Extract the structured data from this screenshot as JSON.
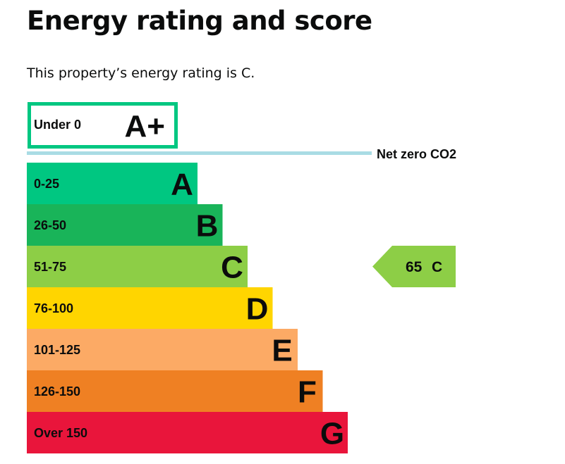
{
  "heading": "Energy rating and score",
  "rating_sentence": "This property’s energy rating is C.",
  "colors": {
    "text": "#0b0c0c",
    "net_zero_line": "#a9dce4"
  },
  "chart_data": {
    "type": "bar",
    "title": "",
    "xlabel": "",
    "ylabel": "",
    "grid": false,
    "categories": [
      "A+",
      "A",
      "B",
      "C",
      "D",
      "E",
      "F",
      "G"
    ],
    "bands": [
      {
        "letter": "A+",
        "range": "Under 0",
        "color": "#00c781",
        "style": "outline"
      },
      {
        "letter": "A",
        "range": "0-25",
        "color": "#00c781",
        "style": "filled"
      },
      {
        "letter": "B",
        "range": "26-50",
        "color": "#19b459",
        "style": "filled"
      },
      {
        "letter": "C",
        "range": "51-75",
        "color": "#8dce46",
        "style": "filled"
      },
      {
        "letter": "D",
        "range": "76-100",
        "color": "#ffd500",
        "style": "filled"
      },
      {
        "letter": "E",
        "range": "101-125",
        "color": "#fcaa65",
        "style": "filled"
      },
      {
        "letter": "F",
        "range": "126-150",
        "color": "#ef8023",
        "style": "filled"
      },
      {
        "letter": "G",
        "range": "Over 150",
        "color": "#e9153b",
        "style": "filled"
      }
    ],
    "net_zero": {
      "label": "Net zero CO2",
      "between": [
        "A+",
        "A"
      ]
    },
    "current": {
      "score": 65,
      "score_label": "65",
      "band": "C",
      "color": "#8dce46"
    }
  }
}
